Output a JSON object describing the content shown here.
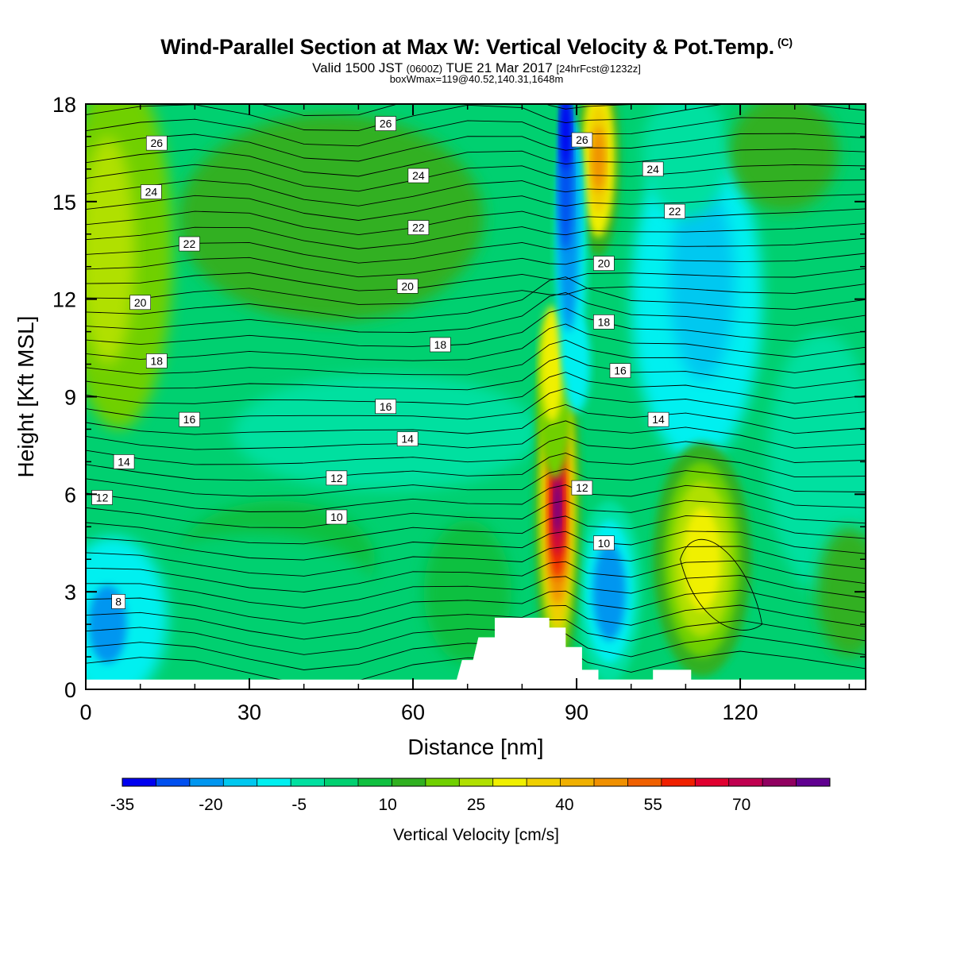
{
  "chart_data": {
    "type": "heatmap",
    "title": "Wind-Parallel Section at Max W: Vertical Velocity & Pot.Temp.",
    "title_mark": "(C)",
    "subtitle": {
      "main": "Valid 1500 JST",
      "utc": "(0600Z)",
      "date": "TUE 21 Mar 2017",
      "fcst": "[24hrFcst@1232z]"
    },
    "info": "boxWmax=119@40.52,140.31,1648m",
    "xlabel": "Distance [nm]",
    "ylabel": "Height [Kft MSL]",
    "xlim": [
      0,
      143
    ],
    "ylim": [
      0,
      18
    ],
    "x_ticks": [
      "0",
      "30",
      "60",
      "90",
      "120"
    ],
    "y_ticks": [
      "0",
      "3",
      "6",
      "9",
      "12",
      "15",
      "18"
    ],
    "colorbar": {
      "title": "Vertical Velocity [cm/s]",
      "range": [
        -35,
        85
      ],
      "tick_labels": [
        "-35",
        "-20",
        "-5",
        "10",
        "25",
        "40",
        "55",
        "70"
      ],
      "colors": [
        "#0000f0",
        "#0050f0",
        "#0096f0",
        "#00c8f0",
        "#00f0f0",
        "#00e0a0",
        "#00d070",
        "#10c040",
        "#30b020",
        "#70d000",
        "#b0e000",
        "#f0f000",
        "#f0d000",
        "#f0b000",
        "#f09000",
        "#f06000",
        "#f02000",
        "#e00030",
        "#c00050",
        "#900060",
        "#600090"
      ]
    },
    "vertical_velocity_features": [
      {
        "kind": "updraft",
        "x_nm": 87,
        "height_kft": 5.0,
        "peak_cm_s": 80
      },
      {
        "kind": "updraft",
        "x_nm": 113,
        "height_kft": 4.0,
        "peak_cm_s": 35
      },
      {
        "kind": "updraft",
        "x_nm": 94,
        "height_kft": 16.0,
        "peak_cm_s": 45
      },
      {
        "kind": "downdraft",
        "x_nm": 88,
        "height_kft": 15.0,
        "peak_cm_s": -30
      },
      {
        "kind": "downdraft",
        "x_nm": 96,
        "height_kft": 3.0,
        "peak_cm_s": -18
      },
      {
        "kind": "downdraft",
        "x_nm": 4,
        "height_kft": 2.0,
        "peak_cm_s": -18
      },
      {
        "kind": "downdraft",
        "x_nm": 113,
        "height_kft": 13.0,
        "peak_cm_s": -12
      },
      {
        "kind": "weak_up",
        "x_nm": 6,
        "height_kft": 13.5,
        "peak_cm_s": 25
      },
      {
        "kind": "weak_up",
        "x_nm": 45,
        "height_kft": 14.5,
        "peak_cm_s": 15
      }
    ],
    "potential_temperature_labels": [
      {
        "v": "26",
        "x": 13,
        "y": 16.8
      },
      {
        "v": "24",
        "x": 12,
        "y": 15.3
      },
      {
        "v": "22",
        "x": 19,
        "y": 13.7
      },
      {
        "v": "20",
        "x": 10,
        "y": 11.9
      },
      {
        "v": "18",
        "x": 13,
        "y": 10.1
      },
      {
        "v": "16",
        "x": 19,
        "y": 8.3
      },
      {
        "v": "14",
        "x": 7,
        "y": 7.0
      },
      {
        "v": "12",
        "x": 3,
        "y": 5.9
      },
      {
        "v": "8",
        "x": 6,
        "y": 2.7
      },
      {
        "v": "26",
        "x": 55,
        "y": 17.4
      },
      {
        "v": "24",
        "x": 61,
        "y": 15.8
      },
      {
        "v": "22",
        "x": 61,
        "y": 14.2
      },
      {
        "v": "20",
        "x": 59,
        "y": 12.4
      },
      {
        "v": "18",
        "x": 65,
        "y": 10.6
      },
      {
        "v": "16",
        "x": 55,
        "y": 8.7
      },
      {
        "v": "14",
        "x": 59,
        "y": 7.7
      },
      {
        "v": "12",
        "x": 46,
        "y": 6.5
      },
      {
        "v": "10",
        "x": 46,
        "y": 5.3
      },
      {
        "v": "26",
        "x": 91,
        "y": 16.9
      },
      {
        "v": "24",
        "x": 104,
        "y": 16.0
      },
      {
        "v": "22",
        "x": 108,
        "y": 14.7
      },
      {
        "v": "20",
        "x": 95,
        "y": 13.1
      },
      {
        "v": "18",
        "x": 95,
        "y": 11.3
      },
      {
        "v": "16",
        "x": 98,
        "y": 9.8
      },
      {
        "v": "14",
        "x": 105,
        "y": 8.3
      },
      {
        "v": "12",
        "x": 91,
        "y": 6.2
      },
      {
        "v": "10",
        "x": 95,
        "y": 4.5
      }
    ],
    "terrain_profile": [
      [
        68,
        0.3
      ],
      [
        69,
        0.9
      ],
      [
        71,
        0.9
      ],
      [
        72,
        1.6
      ],
      [
        75,
        1.6
      ],
      [
        75,
        2.2
      ],
      [
        85,
        2.2
      ],
      [
        85,
        1.9
      ],
      [
        88,
        1.9
      ],
      [
        88,
        1.3
      ],
      [
        91,
        1.3
      ],
      [
        91,
        0.6
      ],
      [
        94,
        0.6
      ],
      [
        94,
        0.3
      ],
      [
        104,
        0.3
      ],
      [
        104,
        0.6
      ],
      [
        111,
        0.6
      ],
      [
        111,
        0.3
      ]
    ],
    "grid": false
  }
}
